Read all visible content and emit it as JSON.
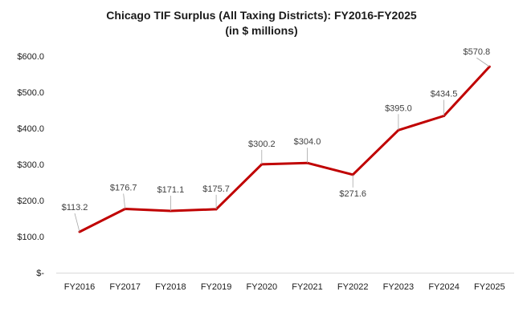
{
  "chart_data": {
    "type": "line",
    "title": "Chicago TIF Surplus (All Taxing Districts): FY2016-FY2025",
    "subtitle": "(in $ millions)",
    "categories": [
      "FY2016",
      "FY2017",
      "FY2018",
      "FY2019",
      "FY2020",
      "FY2021",
      "FY2022",
      "FY2023",
      "FY2024",
      "FY2025"
    ],
    "series": [
      {
        "values": [
          113.2,
          176.7,
          171.1,
          175.7,
          300.2,
          304.0,
          271.6,
          395.0,
          434.5,
          570.8
        ],
        "data_labels": [
          "$113.2",
          "$176.7",
          "$171.1",
          "$175.7",
          "$300.2",
          "$304.0",
          "$271.6",
          "$395.0",
          "$434.5",
          "$570.8"
        ],
        "color": "#c00000"
      }
    ],
    "y_ticks": [
      0,
      100,
      200,
      300,
      400,
      500,
      600
    ],
    "y_tick_labels": [
      "$-",
      "$100.0",
      "$200.0",
      "$300.0",
      "$400.0",
      "$500.0",
      "$600.0"
    ],
    "ylim": [
      0,
      600
    ],
    "grid": false,
    "legend": "none"
  }
}
